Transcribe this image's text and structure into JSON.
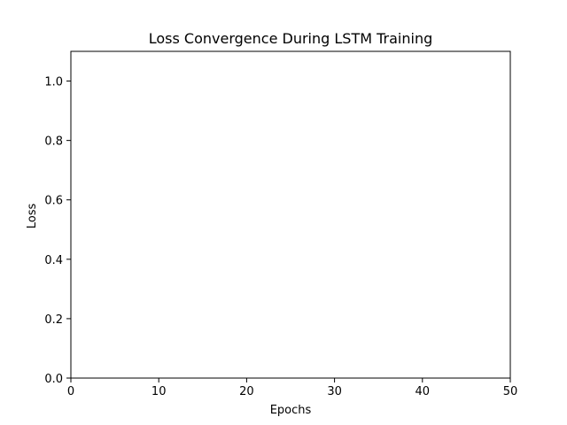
{
  "chart_data": {
    "type": "line",
    "title": "Loss Convergence During LSTM Training",
    "xlabel": "Epochs",
    "ylabel": "Loss",
    "xlim": [
      0,
      50
    ],
    "ylim": [
      0,
      1.1
    ],
    "x_ticks": [
      0,
      10,
      20,
      30,
      40,
      50
    ],
    "x_tick_labels": [
      "0",
      "10",
      "20",
      "30",
      "40",
      "50"
    ],
    "y_ticks": [
      0,
      0.2,
      0.4,
      0.6,
      0.8,
      1.0
    ],
    "y_tick_labels": [
      "0.0",
      "0.2",
      "0.4",
      "0.6",
      "0.8",
      "1.0"
    ],
    "grid": false,
    "series": []
  }
}
